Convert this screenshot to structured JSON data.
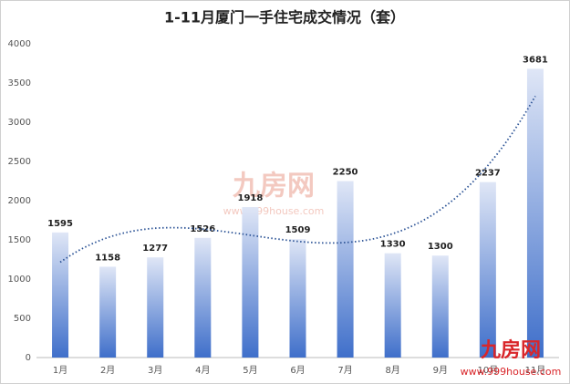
{
  "chart_data": {
    "type": "bar",
    "title": "1-11月厦门一手住宅成交情况（套）",
    "categories": [
      "1月",
      "2月",
      "3月",
      "4月",
      "5月",
      "6月",
      "7月",
      "8月",
      "9月",
      "10月",
      "11月"
    ],
    "values": [
      1595,
      1158,
      1277,
      1526,
      1918,
      1509,
      2250,
      1330,
      1300,
      2237,
      3681
    ],
    "color": "#3f6fca",
    "ylim": [
      0,
      4000
    ],
    "yticks": [
      0,
      500,
      1000,
      1500,
      2000,
      2500,
      3000,
      3500,
      4000
    ],
    "grid": false,
    "trendline": "polynomial",
    "trendline_color": "#2e5597"
  },
  "watermark": {
    "brand": "九房网",
    "url": "www.999house.com"
  }
}
